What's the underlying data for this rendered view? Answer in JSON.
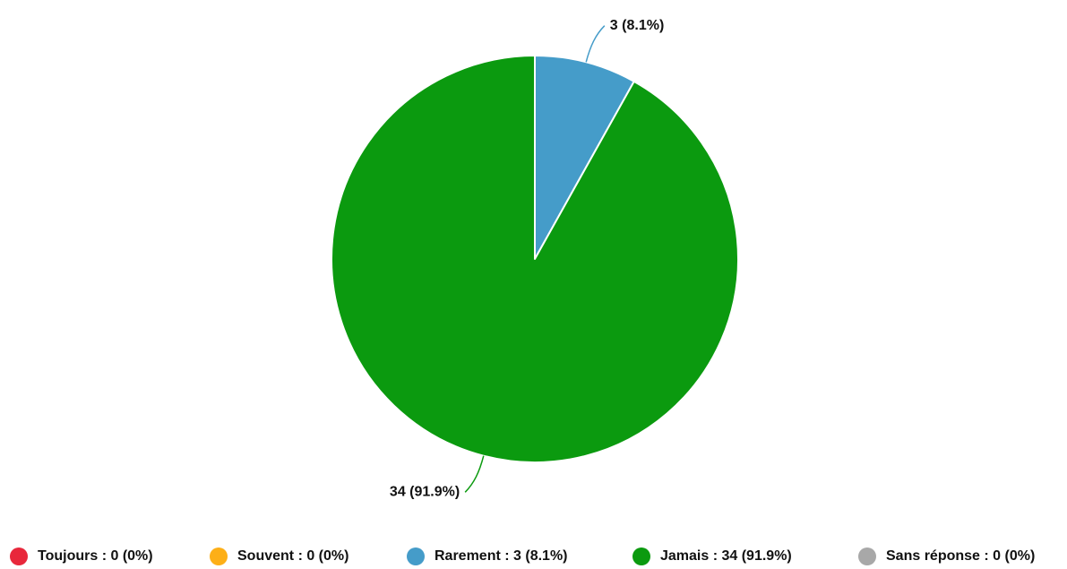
{
  "chart_data": {
    "type": "pie",
    "start_angle_deg": 0,
    "direction": "clockwise",
    "slices": [
      {
        "label": "Toujours",
        "value": 0,
        "percent": "0%",
        "color": "#e8273b",
        "legend_text": "Toujours : 0 (0%)",
        "data_label": ""
      },
      {
        "label": "Souvent",
        "value": 0,
        "percent": "0%",
        "color": "#fdaf17",
        "legend_text": "Souvent : 0 (0%)",
        "data_label": ""
      },
      {
        "label": "Rarement",
        "value": 3,
        "percent": "8.1%",
        "color": "#459cc9",
        "legend_text": "Rarement : 3 (8.1%)",
        "data_label": "3 (8.1%)"
      },
      {
        "label": "Jamais",
        "value": 34,
        "percent": "91.9%",
        "color": "#0b9a0f",
        "legend_text": "Jamais : 34 (91.9%)",
        "data_label": "34 (91.9%)"
      },
      {
        "label": "Sans réponse",
        "value": 0,
        "percent": "0%",
        "color": "#a8a8a8",
        "legend_text": "Sans réponse : 0 (0%)",
        "data_label": ""
      }
    ],
    "legend_position": "bottom"
  }
}
